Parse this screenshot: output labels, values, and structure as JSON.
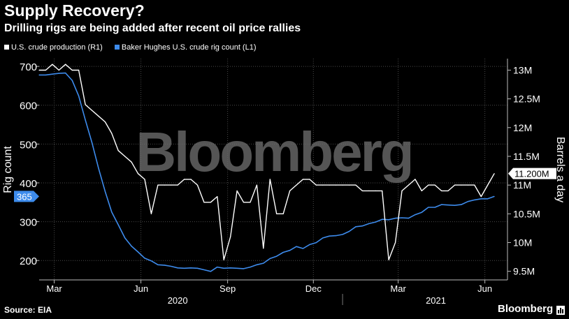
{
  "header": {
    "title": "Supply Recovery?",
    "subtitle": "Drilling rigs are being added after recent oil price rallies"
  },
  "footer": {
    "source": "Source: EIA",
    "brand": "Bloomberg"
  },
  "watermark": "Bloomberg",
  "colors": {
    "background": "#000000",
    "production": "#ffffff",
    "rigs": "#3d8bec",
    "grid": "#4a4a4a",
    "watermark": "#6a6a6a"
  },
  "chart_data": {
    "type": "line",
    "title": "Supply Recovery?",
    "subtitle": "Drilling rigs are being added after recent oil price rallies",
    "legend_position": "top-left",
    "grid": true,
    "x_axis": {
      "range": [
        "2020-02-14",
        "2021-06-25"
      ],
      "month_ticks": [
        {
          "label": "Mar",
          "date": "2020-03-01"
        },
        {
          "label": "Jun",
          "date": "2020-06-01"
        },
        {
          "label": "Sep",
          "date": "2020-09-01"
        },
        {
          "label": "Dec",
          "date": "2020-12-01"
        },
        {
          "label": "Mar",
          "date": "2021-03-01"
        },
        {
          "label": "Jun",
          "date": "2021-06-01"
        }
      ],
      "year_labels": [
        {
          "label": "2020",
          "date": "2020-07-10"
        },
        {
          "label": "2021",
          "date": "2021-04-10"
        }
      ]
    },
    "y_left": {
      "label": "Rig count",
      "range": [
        150,
        720
      ],
      "ticks": [
        "700",
        "600",
        "500",
        "400",
        "300",
        "200"
      ],
      "tick_values": [
        700,
        600,
        500,
        400,
        300,
        200
      ]
    },
    "y_right": {
      "label": "Barrels a day",
      "range": [
        9.35,
        13.2
      ],
      "ticks": [
        "13M",
        "12.5M",
        "12M",
        "11.5M",
        "11M",
        "10.5M",
        "10M",
        "9.5M"
      ],
      "tick_values": [
        13,
        12.5,
        12,
        11.5,
        11,
        10.5,
        10,
        9.5
      ]
    },
    "last_value_labels": {
      "rigs": "365",
      "production": "11.200M"
    },
    "series": [
      {
        "name": "U.S. crude production (R1)",
        "axis": "right",
        "unit": "million barrels a day",
        "points": [
          [
            "2020-02-14",
            13.0
          ],
          [
            "2020-02-21",
            13.0
          ],
          [
            "2020-02-28",
            13.1
          ],
          [
            "2020-03-06",
            13.0
          ],
          [
            "2020-03-13",
            13.1
          ],
          [
            "2020-03-20",
            13.0
          ],
          [
            "2020-03-27",
            13.0
          ],
          [
            "2020-04-03",
            12.4
          ],
          [
            "2020-04-10",
            12.3
          ],
          [
            "2020-04-17",
            12.2
          ],
          [
            "2020-04-24",
            12.1
          ],
          [
            "2020-05-01",
            11.9
          ],
          [
            "2020-05-08",
            11.6
          ],
          [
            "2020-05-15",
            11.5
          ],
          [
            "2020-05-22",
            11.4
          ],
          [
            "2020-05-29",
            11.2
          ],
          [
            "2020-06-05",
            11.1
          ],
          [
            "2020-06-12",
            10.5
          ],
          [
            "2020-06-19",
            11.0
          ],
          [
            "2020-06-26",
            11.0
          ],
          [
            "2020-07-03",
            11.0
          ],
          [
            "2020-07-10",
            11.0
          ],
          [
            "2020-07-17",
            11.1
          ],
          [
            "2020-07-24",
            11.1
          ],
          [
            "2020-07-31",
            11.0
          ],
          [
            "2020-08-07",
            10.7
          ],
          [
            "2020-08-14",
            10.7
          ],
          [
            "2020-08-21",
            10.8
          ],
          [
            "2020-08-28",
            9.7
          ],
          [
            "2020-09-04",
            10.1
          ],
          [
            "2020-09-11",
            10.9
          ],
          [
            "2020-09-18",
            10.7
          ],
          [
            "2020-09-25",
            10.7
          ],
          [
            "2020-10-02",
            11.0
          ],
          [
            "2020-10-09",
            9.9
          ],
          [
            "2020-10-16",
            11.1
          ],
          [
            "2020-10-23",
            10.5
          ],
          [
            "2020-10-30",
            10.5
          ],
          [
            "2020-11-06",
            10.9
          ],
          [
            "2020-11-13",
            11.0
          ],
          [
            "2020-11-20",
            11.1
          ],
          [
            "2020-11-27",
            11.1
          ],
          [
            "2020-12-04",
            11.0
          ],
          [
            "2020-12-11",
            11.0
          ],
          [
            "2020-12-18",
            11.0
          ],
          [
            "2020-12-25",
            11.0
          ],
          [
            "2021-01-01",
            11.0
          ],
          [
            "2021-01-08",
            11.0
          ],
          [
            "2021-01-15",
            11.0
          ],
          [
            "2021-01-22",
            10.9
          ],
          [
            "2021-01-29",
            10.9
          ],
          [
            "2021-02-05",
            10.9
          ],
          [
            "2021-02-12",
            10.9
          ],
          [
            "2021-02-19",
            9.7
          ],
          [
            "2021-02-26",
            10.0
          ],
          [
            "2021-03-05",
            10.9
          ],
          [
            "2021-03-12",
            11.0
          ],
          [
            "2021-03-19",
            11.1
          ],
          [
            "2021-03-26",
            10.9
          ],
          [
            "2021-04-02",
            11.0
          ],
          [
            "2021-04-09",
            11.0
          ],
          [
            "2021-04-16",
            10.9
          ],
          [
            "2021-04-23",
            10.9
          ],
          [
            "2021-04-30",
            11.0
          ],
          [
            "2021-05-07",
            11.0
          ],
          [
            "2021-05-14",
            11.0
          ],
          [
            "2021-05-21",
            11.0
          ],
          [
            "2021-05-28",
            10.8
          ],
          [
            "2021-06-04",
            11.0
          ],
          [
            "2021-06-11",
            11.2
          ]
        ]
      },
      {
        "name": "Baker Hughes U.S. crude rig count (L1)",
        "axis": "left",
        "unit": "rigs",
        "points": [
          [
            "2020-02-14",
            678
          ],
          [
            "2020-02-21",
            678
          ],
          [
            "2020-02-28",
            680
          ],
          [
            "2020-03-06",
            682
          ],
          [
            "2020-03-13",
            683
          ],
          [
            "2020-03-20",
            664
          ],
          [
            "2020-03-27",
            624
          ],
          [
            "2020-04-03",
            562
          ],
          [
            "2020-04-10",
            504
          ],
          [
            "2020-04-17",
            438
          ],
          [
            "2020-04-24",
            378
          ],
          [
            "2020-05-01",
            325
          ],
          [
            "2020-05-08",
            292
          ],
          [
            "2020-05-15",
            258
          ],
          [
            "2020-05-22",
            237
          ],
          [
            "2020-05-29",
            222
          ],
          [
            "2020-06-05",
            206
          ],
          [
            "2020-06-12",
            199
          ],
          [
            "2020-06-19",
            189
          ],
          [
            "2020-06-26",
            188
          ],
          [
            "2020-07-03",
            185
          ],
          [
            "2020-07-10",
            181
          ],
          [
            "2020-07-17",
            180
          ],
          [
            "2020-07-24",
            181
          ],
          [
            "2020-07-31",
            180
          ],
          [
            "2020-08-07",
            176
          ],
          [
            "2020-08-14",
            172
          ],
          [
            "2020-08-21",
            183
          ],
          [
            "2020-08-28",
            180
          ],
          [
            "2020-09-04",
            181
          ],
          [
            "2020-09-11",
            180
          ],
          [
            "2020-09-18",
            179
          ],
          [
            "2020-09-25",
            183
          ],
          [
            "2020-10-02",
            189
          ],
          [
            "2020-10-09",
            193
          ],
          [
            "2020-10-16",
            205
          ],
          [
            "2020-10-23",
            211
          ],
          [
            "2020-10-30",
            221
          ],
          [
            "2020-11-06",
            226
          ],
          [
            "2020-11-13",
            236
          ],
          [
            "2020-11-20",
            231
          ],
          [
            "2020-11-27",
            241
          ],
          [
            "2020-12-04",
            246
          ],
          [
            "2020-12-11",
            258
          ],
          [
            "2020-12-18",
            263
          ],
          [
            "2020-12-25",
            264
          ],
          [
            "2021-01-01",
            267
          ],
          [
            "2021-01-08",
            275
          ],
          [
            "2021-01-15",
            287
          ],
          [
            "2021-01-22",
            289
          ],
          [
            "2021-01-29",
            295
          ],
          [
            "2021-02-05",
            299
          ],
          [
            "2021-02-12",
            306
          ],
          [
            "2021-02-19",
            305
          ],
          [
            "2021-02-26",
            309
          ],
          [
            "2021-03-05",
            310
          ],
          [
            "2021-03-12",
            309
          ],
          [
            "2021-03-19",
            318
          ],
          [
            "2021-03-26",
            324
          ],
          [
            "2021-04-02",
            337
          ],
          [
            "2021-04-09",
            337
          ],
          [
            "2021-04-16",
            344
          ],
          [
            "2021-04-23",
            343
          ],
          [
            "2021-04-30",
            342
          ],
          [
            "2021-05-07",
            344
          ],
          [
            "2021-05-14",
            352
          ],
          [
            "2021-05-21",
            356
          ],
          [
            "2021-05-28",
            359
          ],
          [
            "2021-06-04",
            359
          ],
          [
            "2021-06-11",
            365
          ]
        ]
      }
    ]
  }
}
